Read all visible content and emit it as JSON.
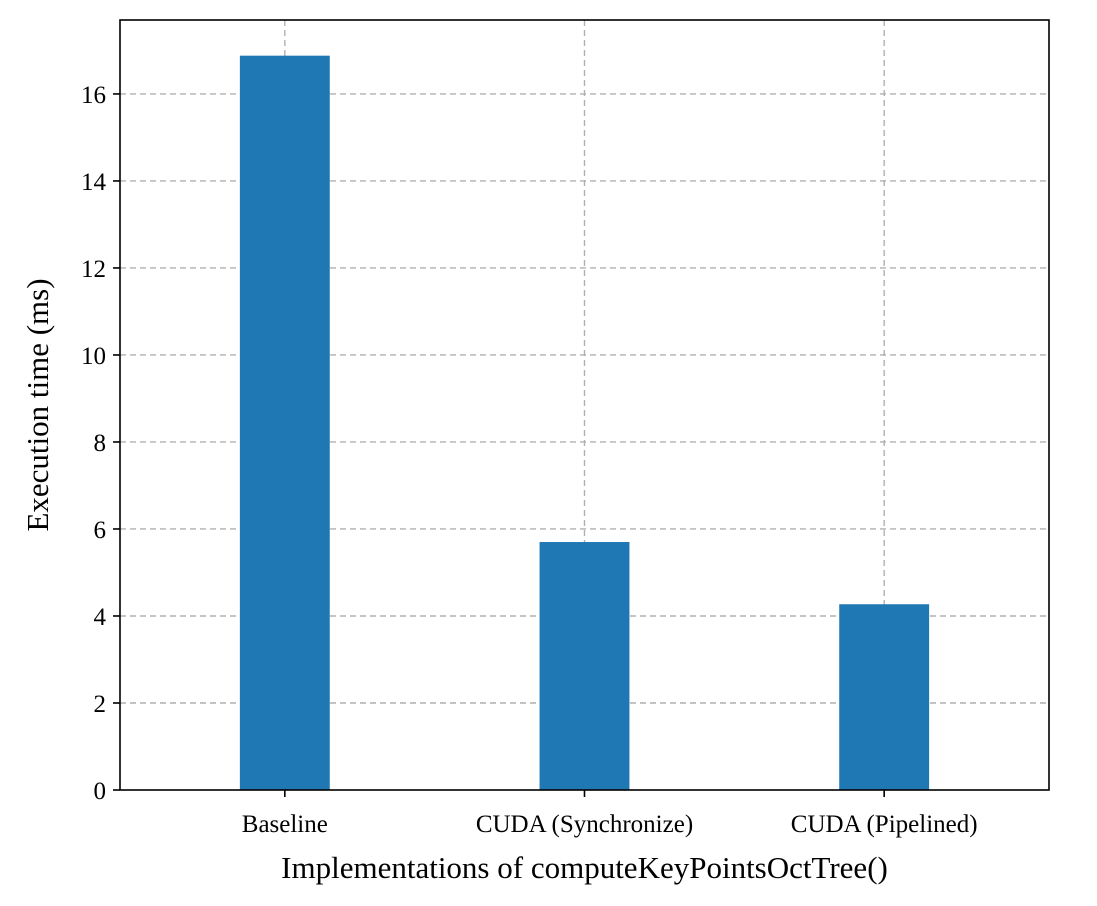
{
  "chart_data": {
    "type": "bar",
    "categories": [
      "Baseline",
      "CUDA (Synchronize)",
      "CUDA (Pipelined)"
    ],
    "values": [
      16.88,
      5.7,
      4.27
    ],
    "xlabel": "Implementations of computeKeyPointsOctTree()",
    "ylabel": "Execution time (ms)",
    "ylim": [
      0,
      17.7
    ],
    "yticks": [
      0,
      2,
      4,
      6,
      8,
      10,
      12,
      14,
      16
    ],
    "grid": true,
    "bar_color": "#1f77b4"
  }
}
